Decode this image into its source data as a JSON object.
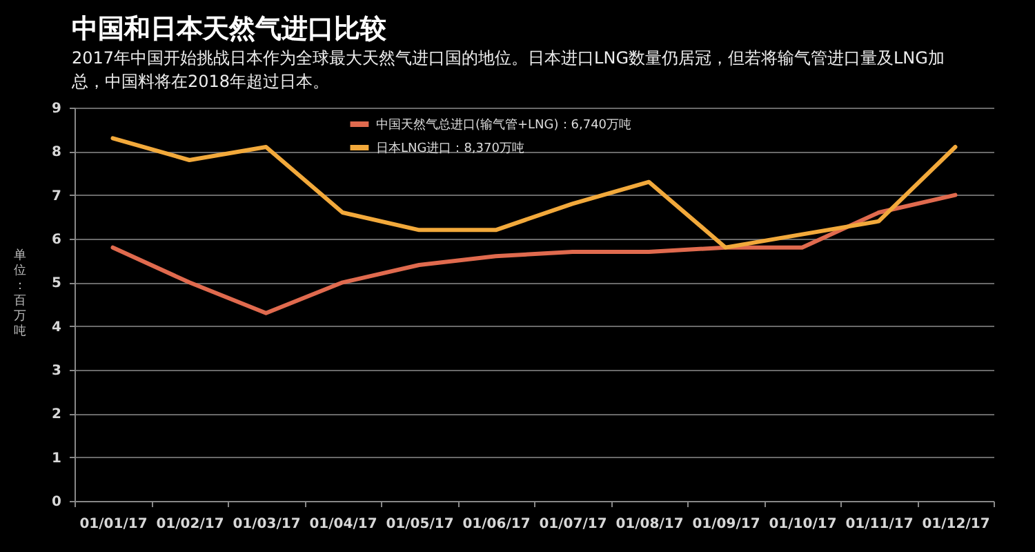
{
  "chart_data": {
    "type": "line",
    "title": "中国和日本天然气进口比较",
    "subtitle": "2017年中国开始挑战日本作为全球最大天然气进口国的地位。日本进口LNG数量仍居冠，但若将输气管进口量及LNG加总，中国料将在2018年超过日本。",
    "ylabel": "单位：百万吨",
    "categories": [
      "01/01/17",
      "01/02/17",
      "01/03/17",
      "01/04/17",
      "01/05/17",
      "01/06/17",
      "01/07/17",
      "01/08/17",
      "01/09/17",
      "01/10/17",
      "01/11/17",
      "01/12/17"
    ],
    "series": [
      {
        "name": "中国天然气总进口(输气管+LNG)：6,740万吨",
        "color": "#e06a4e",
        "values": [
          5.8,
          5.0,
          4.3,
          5.0,
          5.4,
          5.6,
          5.7,
          5.7,
          5.8,
          5.8,
          6.6,
          7.0
        ]
      },
      {
        "name": "日本LNG进口：8,370万吨",
        "color": "#f2a93b",
        "values": [
          8.3,
          7.8,
          8.1,
          6.6,
          6.2,
          6.2,
          6.8,
          7.3,
          5.8,
          6.1,
          6.4,
          8.1
        ]
      }
    ],
    "ylim": [
      0,
      9
    ],
    "yticks": [
      0,
      1,
      2,
      3,
      4,
      5,
      6,
      7,
      8,
      9
    ],
    "grid": "y",
    "legend": "top",
    "line_style": "solid"
  }
}
